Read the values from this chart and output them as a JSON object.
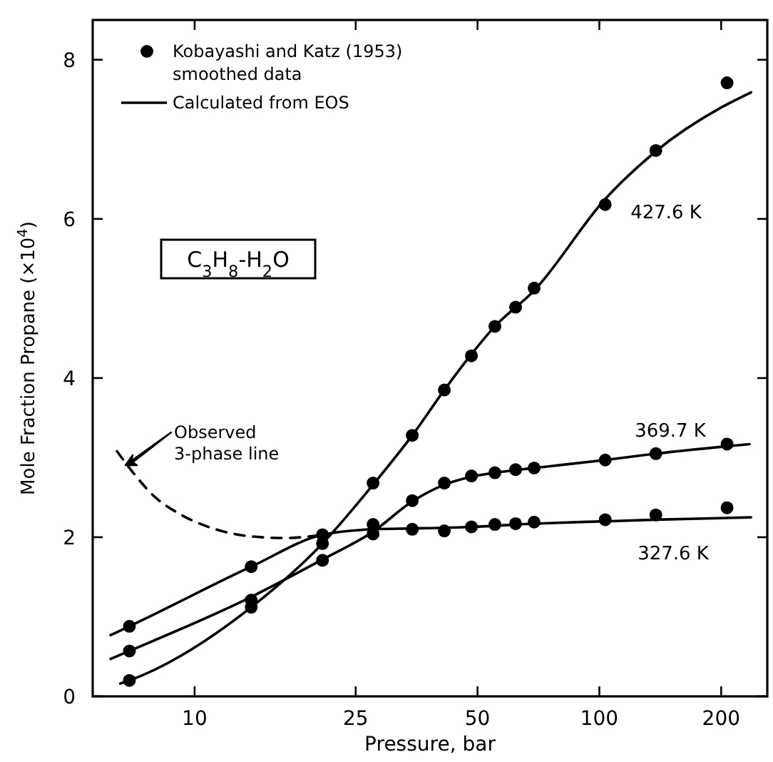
{
  "chart_data": {
    "type": "scatter",
    "xlabel": "Pressure, bar",
    "ylabel": "Mole Fraction Propane (×10$^{4}$)",
    "log": "x",
    "xlim": [
      5.6,
      260
    ],
    "xticks": [
      10,
      25,
      50,
      100,
      200
    ],
    "ylim": [
      0,
      8.5
    ],
    "yticks": [
      0,
      2,
      4,
      6,
      8
    ],
    "legend": "top left",
    "series": [
      {
        "name": "Kobayashi and Katz (1953) smoothed data",
        "color": "#000000",
        "marker": "circle",
        "x": [
          6.9,
          13.8,
          20.7,
          27.6,
          34.5,
          41.4,
          48.3,
          55.2,
          62.1,
          69.0,
          103.4,
          137.9,
          206.8,
          6.9,
          13.8,
          20.7,
          27.6,
          34.5,
          41.4,
          48.3,
          55.2,
          62.1,
          69.0,
          103.4,
          137.9,
          206.8,
          6.9,
          13.8,
          20.7,
          27.6,
          34.5,
          41.4,
          48.3,
          55.2,
          62.1,
          69.0,
          103.4,
          137.9,
          206.8
        ],
        "values": [
          0.88,
          1.63,
          2.03,
          2.04,
          2.1,
          2.08,
          2.13,
          2.16,
          2.17,
          2.19,
          2.22,
          2.28,
          2.37,
          0.57,
          1.21,
          1.71,
          2.16,
          2.46,
          2.68,
          2.77,
          2.81,
          2.85,
          2.87,
          2.97,
          3.05,
          3.17,
          0.2,
          1.12,
          1.92,
          2.68,
          3.28,
          3.85,
          4.28,
          4.65,
          4.89,
          5.13,
          6.18,
          6.86,
          7.71
        ]
      },
      {
        "type": "line",
        "name": "Calculated from EOS",
        "color": "#000000",
        "line_style": "solid",
        "x": [
          6.2,
          6.9,
          13.8,
          20.7,
          27.6,
          34.5,
          48.3,
          69.0,
          103.4,
          137.9,
          237,
          null,
          6.2,
          6.9,
          13.8,
          20.7,
          27.6,
          34.5,
          41.4,
          48.3,
          55.2,
          69.0,
          103.4,
          137.9,
          235,
          null,
          6.55,
          6.9,
          13.8,
          20.7,
          27.6,
          34.5,
          41.4,
          48.3,
          55.2,
          69.0,
          103.4,
          137.9,
          200,
          237
        ],
        "values": [
          0.77,
          0.88,
          1.63,
          2.03,
          2.1,
          2.11,
          2.13,
          2.17,
          2.2,
          2.22,
          2.25,
          null,
          0.47,
          0.57,
          1.25,
          1.72,
          2.07,
          2.45,
          2.66,
          2.76,
          2.81,
          2.87,
          2.97,
          3.05,
          3.17,
          null,
          0.16,
          0.2,
          1.12,
          1.92,
          2.66,
          3.28,
          3.85,
          4.3,
          4.65,
          5.1,
          6.25,
          6.85,
          7.4,
          7.59
        ]
      },
      {
        "type": "line",
        "color": "#000000",
        "line_style": "dashed",
        "x": [
          6.43,
          7.0,
          8.0,
          9.2,
          11.1,
          13.8,
          16.7,
          20.7
        ],
        "values": [
          3.08,
          2.83,
          2.5,
          2.29,
          2.11,
          2.01,
          1.99,
          2.03
        ]
      }
    ],
    "annotations": [
      "427.6 K",
      "369.7 K",
      "327.6 K",
      "C$_{3}$H$_{8}$-H$_{2}$O",
      "Observed 3-phase line"
    ]
  }
}
